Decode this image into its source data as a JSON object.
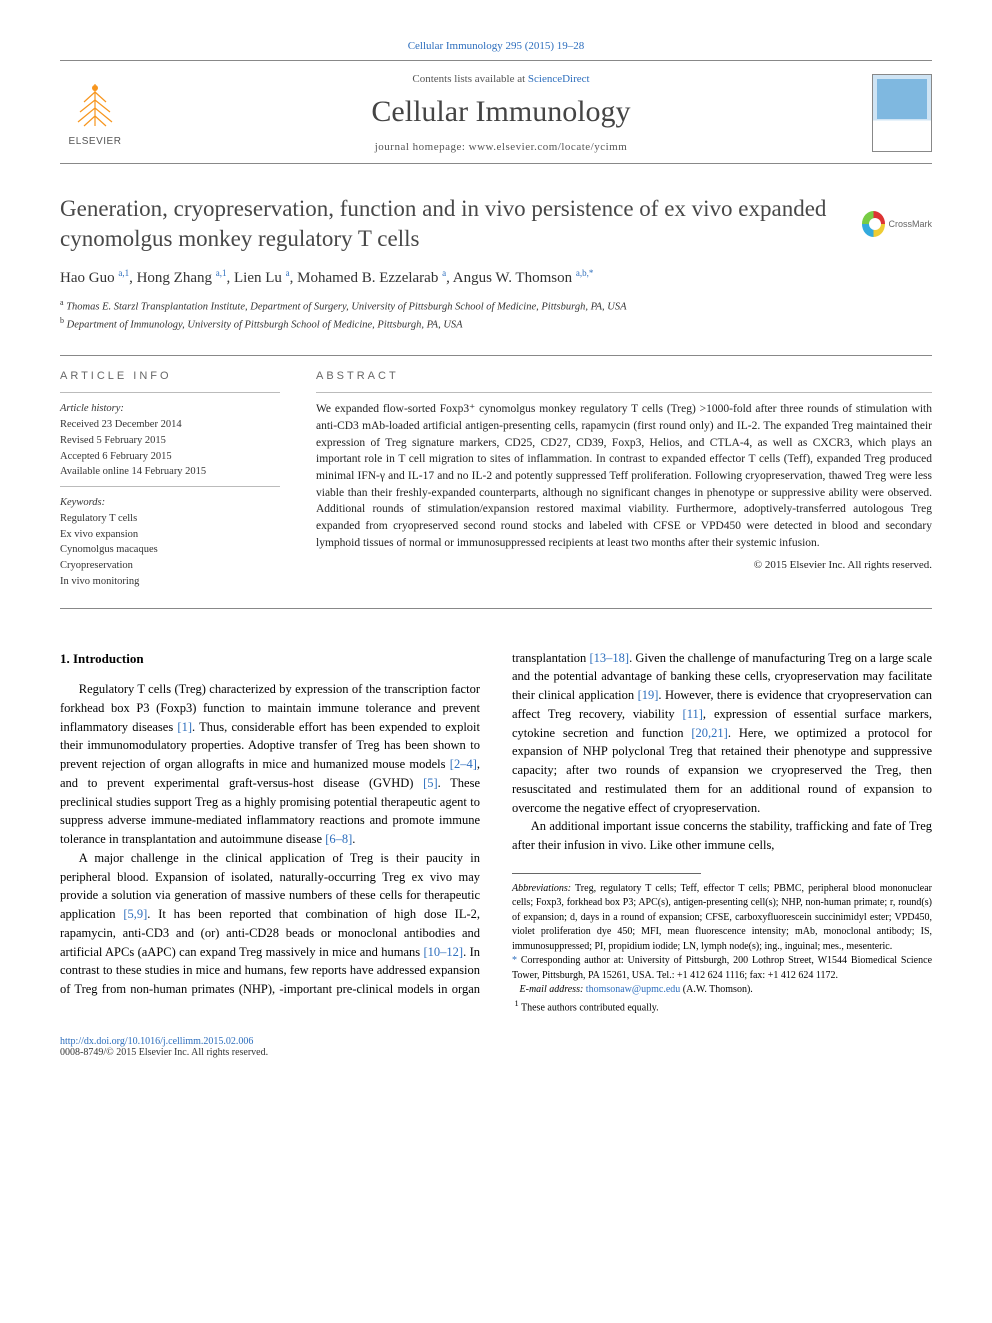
{
  "citation": "Cellular Immunology 295 (2015) 19–28",
  "header": {
    "contents_prefix": "Contents lists available at ",
    "contents_link": "ScienceDirect",
    "journal_name": "Cellular Immunology",
    "homepage_prefix": "journal homepage: ",
    "homepage": "www.elsevier.com/locate/ycimm",
    "publisher_logo_label": "ELSEVIER"
  },
  "crossmark_label": "CrossMark",
  "title": "Generation, cryopreservation, function and in vivo persistence of ex vivo expanded cynomolgus monkey regulatory T cells",
  "authors_html": "Hao Guo <sup>a,1</sup>, Hong Zhang <sup>a,1</sup>, Lien Lu <sup>a</sup>, Mohamed B. Ezzelarab <sup>a</sup>, Angus W. Thomson <sup>a,b,*</sup>",
  "affiliations": {
    "a": "Thomas E. Starzl Transplantation Institute, Department of Surgery, University of Pittsburgh School of Medicine, Pittsburgh, PA, USA",
    "b": "Department of Immunology, University of Pittsburgh School of Medicine, Pittsburgh, PA, USA"
  },
  "article_info_heading": "ARTICLE INFO",
  "abstract_heading": "ABSTRACT",
  "history": {
    "heading": "Article history:",
    "received": "Received 23 December 2014",
    "revised": "Revised 5 February 2015",
    "accepted": "Accepted 6 February 2015",
    "online": "Available online 14 February 2015"
  },
  "keywords": {
    "heading": "Keywords:",
    "items": [
      "Regulatory T cells",
      "Ex vivo expansion",
      "Cynomolgus macaques",
      "Cryopreservation",
      "In vivo monitoring"
    ]
  },
  "abstract": "We expanded flow-sorted Foxp3⁺ cynomolgus monkey regulatory T cells (Treg) >1000-fold after three rounds of stimulation with anti-CD3 mAb-loaded artificial antigen-presenting cells, rapamycin (first round only) and IL-2. The expanded Treg maintained their expression of Treg signature markers, CD25, CD27, CD39, Foxp3, Helios, and CTLA-4, as well as CXCR3, which plays an important role in T cell migration to sites of inflammation. In contrast to expanded effector T cells (Teff), expanded Treg produced minimal IFN-γ and IL-17 and no IL-2 and potently suppressed Teff proliferation. Following cryopreservation, thawed Treg were less viable than their freshly-expanded counterparts, although no significant changes in phenotype or suppressive ability were observed. Additional rounds of stimulation/expansion restored maximal viability. Furthermore, adoptively-transferred autologous Treg expanded from cryopreserved second round stocks and labeled with CFSE or VPD450 were detected in blood and secondary lymphoid tissues of normal or immunosuppressed recipients at least two months after their systemic infusion.",
  "copyright": "© 2015 Elsevier Inc. All rights reserved.",
  "sections": {
    "intro_heading": "1. Introduction",
    "p1_a": "Regulatory T cells (Treg) characterized by expression of the transcription factor forkhead box P3 (Foxp3) function to maintain immune tolerance and prevent inflammatory diseases ",
    "p1_ref1": "[1]",
    "p1_b": ". Thus, considerable effort has been expended to exploit their immunomodulatory properties. Adoptive transfer of Treg has been shown to prevent rejection of organ allografts in mice and humanized mouse models ",
    "p1_ref2": "[2–4]",
    "p1_c": ", and to prevent experimental graft-versus-host disease (GVHD) ",
    "p1_ref3": "[5]",
    "p1_d": ". These preclinical studies support Treg as a highly promising potential therapeutic agent to suppress adverse immune-mediated inflammatory reactions and promote immune tolerance in transplantation and autoimmune disease ",
    "p1_ref4": "[6–8]",
    "p1_e": ".",
    "p2_a": "A major challenge in the clinical application of Treg is their paucity in peripheral blood. Expansion of isolated, naturally-occurring Treg ex vivo may provide a solution via generation of massive numbers of these cells for therapeutic application ",
    "p2_ref1": "[5,9]",
    "p2_b": ". It has been reported that combination of high dose IL-2, rapamycin, anti-CD3 and (or) anti-CD28 beads or monoclonal antibodies and artificial APCs (aAPC) can expand Treg massively in mice and humans ",
    "p2_ref2": "[10–12]",
    "p2_c": ". In contrast to these studies in mice and humans, few reports have addressed expansion of Treg from non-human primates (NHP), -important pre-clinical models in organ transplantation ",
    "p2_ref3": "[13–18]",
    "p2_d": ". Given the challenge of manufacturing Treg on a large scale and the potential advantage of banking these cells, cryopreservation may facilitate their clinical application ",
    "p2_ref4": "[19]",
    "p2_e": ". However, there is evidence that cryopreservation can affect Treg recovery, viability ",
    "p2_ref5": "[11]",
    "p2_f": ", expression of essential surface markers, cytokine secretion and function ",
    "p2_ref6": "[20,21]",
    "p2_g": ". Here, we optimized a protocol for expansion of NHP polyclonal Treg that retained their phenotype and suppressive capacity; after two rounds of expansion we cryopreserved the Treg, then resuscitated and restimulated them for an additional round of expansion to overcome the negative effect of cryopreservation.",
    "p3": "An additional important issue concerns the stability, trafficking and fate of Treg after their infusion in vivo. Like other immune cells,"
  },
  "footnotes": {
    "abbrev_label": "Abbreviations:",
    "abbrev": " Treg, regulatory T cells; Teff, effector T cells; PBMC, peripheral blood mononuclear cells; Foxp3, forkhead box P3; APC(s), antigen-presenting cell(s); NHP, non-human primate; r, round(s) of expansion; d, days in a round of expansion; CFSE, carboxyfluorescein succinimidyl ester; VPD450, violet proliferation dye 450; MFI, mean fluorescence intensity; mAb, monoclonal antibody; IS, immunosuppressed; PI, propidium iodide; LN, lymph node(s); ing., inguinal; mes., mesenteric.",
    "corr": "Corresponding author at: University of Pittsburgh, 200 Lothrop Street, W1544 Biomedical Science Tower, Pittsburgh, PA 15261, USA. Tel.: +1 412 624 1116; fax: +1 412 624 1172.",
    "email_label": "E-mail address:",
    "email": "thomsonaw@upmc.edu",
    "email_person": " (A.W. Thomson).",
    "equal": "These authors contributed equally."
  },
  "bottom": {
    "doi": "http://dx.doi.org/10.1016/j.cellimm.2015.02.006",
    "issn_copy": "0008-8749/© 2015 Elsevier Inc. All rights reserved."
  }
}
